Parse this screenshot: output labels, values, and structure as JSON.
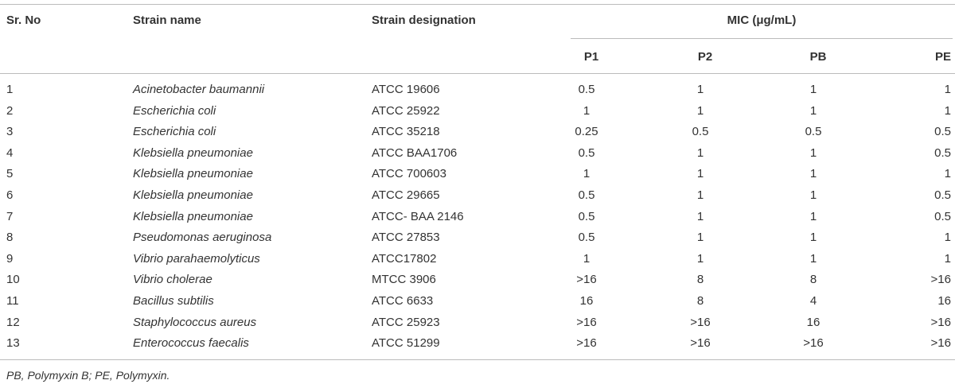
{
  "header": {
    "sr_no": "Sr. No",
    "strain_name": "Strain name",
    "strain_designation": "Strain designation",
    "mic": "MIC (μg/mL)",
    "subcolumns": [
      "P1",
      "P2",
      "PB",
      "PE"
    ]
  },
  "table": {
    "rows": [
      [
        "1",
        "Acinetobacter baumannii",
        "ATCC 19606",
        "0.5",
        "1",
        "1",
        "1"
      ],
      [
        "2",
        "Escherichia coli",
        "ATCC 25922",
        "1",
        "1",
        "1",
        "1"
      ],
      [
        "3",
        "Escherichia coli",
        "ATCC 35218",
        "0.25",
        "0.5",
        "0.5",
        "0.5"
      ],
      [
        "4",
        "Klebsiella pneumoniae",
        "ATCC BAA1706",
        "0.5",
        "1",
        "1",
        "0.5"
      ],
      [
        "5",
        "Klebsiella pneumoniae",
        "ATCC 700603",
        "1",
        "1",
        "1",
        "1"
      ],
      [
        "6",
        "Klebsiella pneumoniae",
        "ATCC 29665",
        "0.5",
        "1",
        "1",
        "0.5"
      ],
      [
        "7",
        "Klebsiella pneumoniae",
        "ATCC- BAA 2146",
        "0.5",
        "1",
        "1",
        "0.5"
      ],
      [
        "8",
        "Pseudomonas aeruginosa",
        "ATCC 27853",
        "0.5",
        "1",
        "1",
        "1"
      ],
      [
        "9",
        "Vibrio parahaemolyticus",
        "ATCC17802",
        "1",
        "1",
        "1",
        "1"
      ],
      [
        "10",
        "Vibrio cholerae",
        "MTCC 3906",
        ">16",
        "8",
        "8",
        ">16"
      ],
      [
        "11",
        "Bacillus subtilis",
        "ATCC 6633",
        "16",
        "8",
        "4",
        "16"
      ],
      [
        "12",
        "Staphylococcus aureus",
        "ATCC 25923",
        ">16",
        ">16",
        "16",
        ">16"
      ],
      [
        "13",
        "Enterococcus faecalis",
        "ATCC 51299",
        ">16",
        ">16",
        ">16",
        ">16"
      ]
    ]
  },
  "footnote": "PB, Polymyxin B; PE, Polymyxin."
}
